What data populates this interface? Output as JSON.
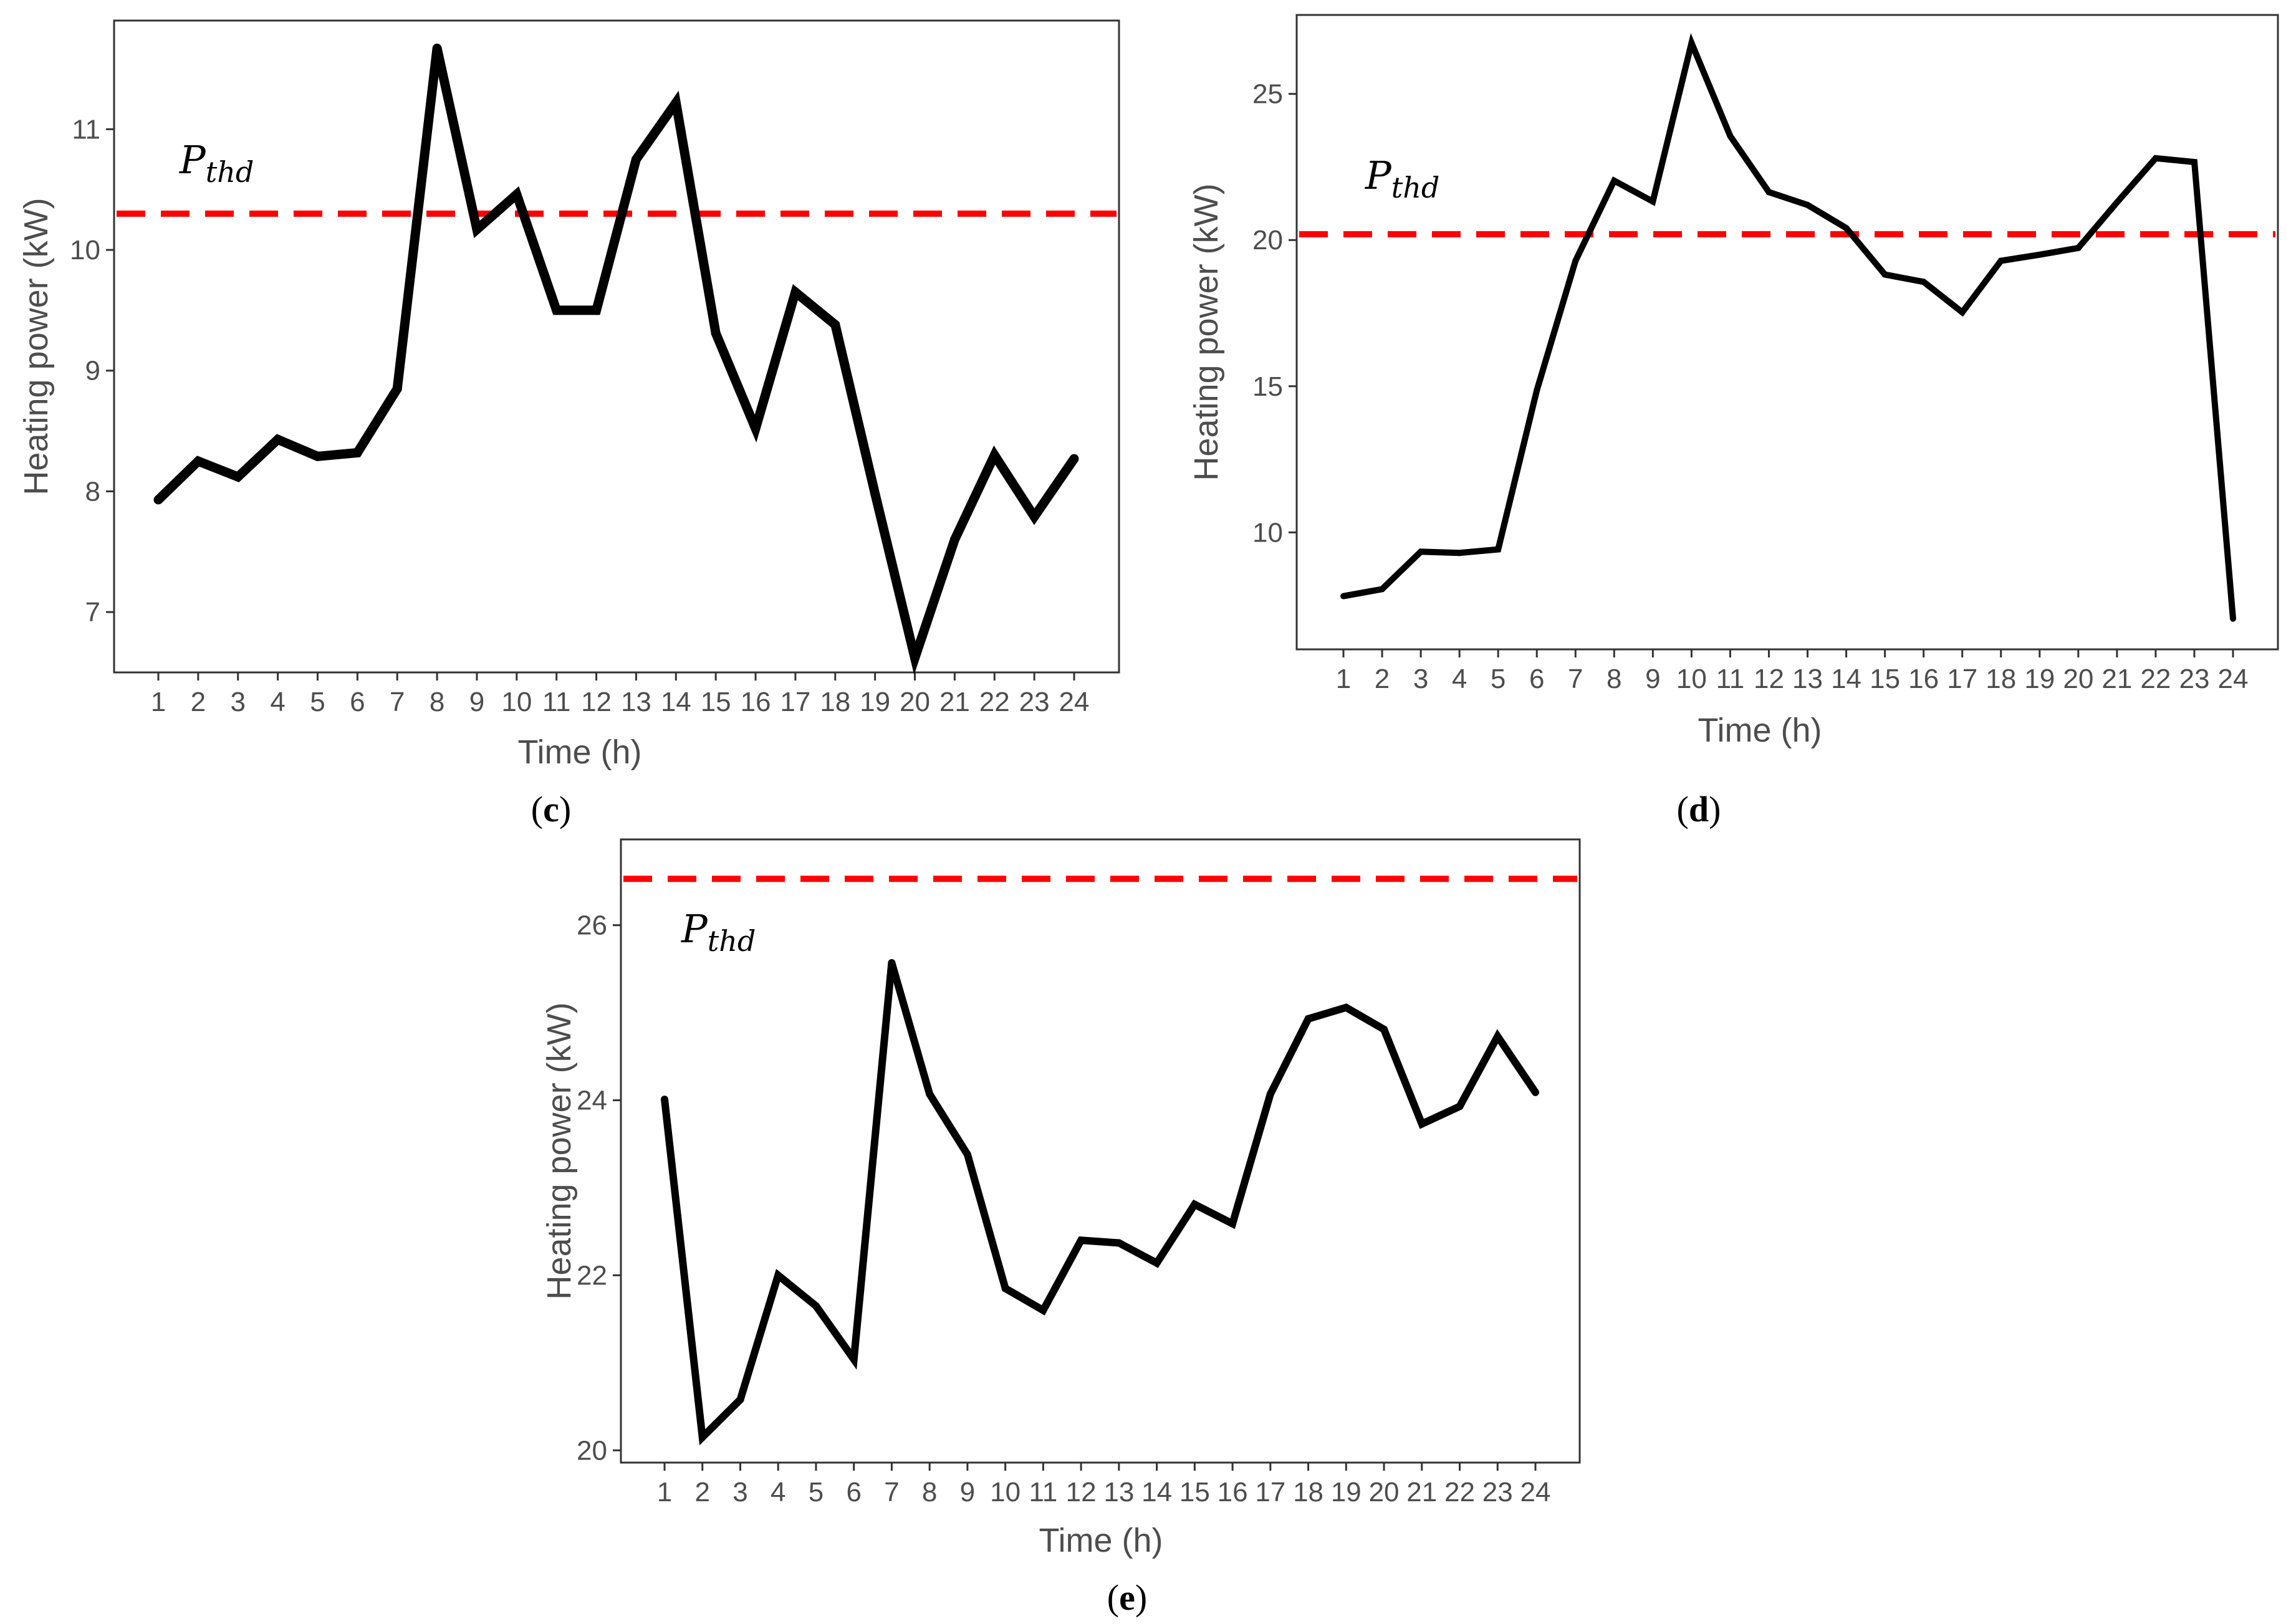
{
  "chart_data": [
    {
      "type": "line",
      "panel_label": "(c)",
      "panel_letter": "c",
      "xlabel": "Time (h)",
      "ylabel": "Heating power (kW)",
      "categories": [
        "1",
        "2",
        "3",
        "4",
        "5",
        "6",
        "7",
        "8",
        "9",
        "10",
        "11",
        "12",
        "13",
        "14",
        "15",
        "16",
        "17",
        "18",
        "19",
        "20",
        "21",
        "22",
        "23",
        "24"
      ],
      "yticks": [
        "7",
        "8",
        "9",
        "10",
        "11"
      ],
      "ylim": [
        6.5,
        11.9
      ],
      "series": [
        {
          "name": "Heating power",
          "color": "#000000",
          "values": [
            7.93,
            8.25,
            8.12,
            8.43,
            8.29,
            8.32,
            8.85,
            11.67,
            10.17,
            10.46,
            9.5,
            9.5,
            10.75,
            11.22,
            9.31,
            8.52,
            9.65,
            9.38,
            7.98,
            6.62,
            7.6,
            8.3,
            7.79,
            8.27
          ]
        }
      ],
      "threshold": {
        "label": "P",
        "subscript": "thd",
        "value": 10.3,
        "color": "#ff0000"
      },
      "grid": false
    },
    {
      "type": "line",
      "panel_label": "(d)",
      "panel_letter": "d",
      "xlabel": "Time (h)",
      "ylabel": "Heating power (kW)",
      "categories": [
        "1",
        "2",
        "3",
        "4",
        "5",
        "6",
        "7",
        "8",
        "9",
        "10",
        "11",
        "12",
        "13",
        "14",
        "15",
        "16",
        "17",
        "18",
        "19",
        "20",
        "21",
        "22",
        "23",
        "24"
      ],
      "yticks": [
        "10",
        "15",
        "20",
        "25"
      ],
      "ylim": [
        6.0,
        27.7
      ],
      "series": [
        {
          "name": "Heating power",
          "color": "#000000",
          "values": [
            7.82,
            8.06,
            9.34,
            9.3,
            9.42,
            14.86,
            19.29,
            22.03,
            21.32,
            26.74,
            23.56,
            21.64,
            21.2,
            20.41,
            18.82,
            18.57,
            17.53,
            19.29,
            19.5,
            19.73,
            21.29,
            22.8,
            22.67,
            7.05
          ]
        }
      ],
      "threshold": {
        "label": "P",
        "subscript": "thd",
        "value": 20.2,
        "color": "#ff0000"
      },
      "grid": false
    },
    {
      "type": "line",
      "panel_label": "(e)",
      "panel_letter": "e",
      "xlabel": "Time (h)",
      "ylabel": "Heating power (kW)",
      "categories": [
        "1",
        "2",
        "3",
        "4",
        "5",
        "6",
        "7",
        "8",
        "9",
        "10",
        "11",
        "12",
        "13",
        "14",
        "15",
        "16",
        "17",
        "18",
        "19",
        "20",
        "21",
        "22",
        "23",
        "24"
      ],
      "yticks": [
        "20",
        "22",
        "24",
        "26"
      ],
      "ylim": [
        19.86,
        26.98
      ],
      "series": [
        {
          "name": "Heating power",
          "color": "#000000",
          "values": [
            24.01,
            20.15,
            20.58,
            22.0,
            21.65,
            21.04,
            25.57,
            24.07,
            23.38,
            21.85,
            21.6,
            22.4,
            22.37,
            22.14,
            22.81,
            22.59,
            24.07,
            24.93,
            25.06,
            24.81,
            23.73,
            23.93,
            24.73,
            24.09
          ]
        }
      ],
      "threshold": {
        "label": "P",
        "subscript": "thd",
        "value": 26.53,
        "color": "#ff0000"
      },
      "grid": false
    }
  ]
}
